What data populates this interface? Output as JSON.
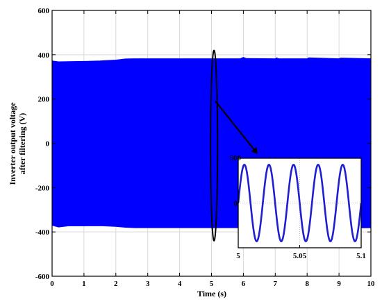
{
  "colors": {
    "signal": "#0000ff",
    "inset_signal": "#1f1fd0",
    "grid": "#d9d9d9",
    "axis": "#000000",
    "background": "#ffffff"
  },
  "chart_data": [
    {
      "type": "area",
      "xlabel": "Time (s)",
      "ylabel_lines": [
        "Inverter output voltage",
        "after filtering (V)"
      ],
      "xlim": [
        0,
        10
      ],
      "ylim": [
        -600,
        600
      ],
      "xticks": [
        0,
        1,
        2,
        3,
        4,
        5,
        6,
        7,
        8,
        9,
        10
      ],
      "yticks": [
        -600,
        -400,
        -200,
        0,
        200,
        400,
        600
      ],
      "grid": true,
      "envelope": {
        "x": [
          0,
          0.2,
          0.5,
          1.0,
          1.5,
          2.0,
          2.3,
          2.6,
          3.0,
          4.0,
          5.0,
          5.9,
          6.0,
          6.1,
          7.0,
          7.05,
          7.1,
          8.0,
          8.05,
          9.0,
          9.05,
          10.0
        ],
        "upper": [
          372,
          368,
          369,
          370,
          372,
          376,
          381,
          382,
          382,
          382,
          382,
          382,
          388,
          383,
          382,
          386,
          382,
          382,
          386,
          382,
          385,
          382
        ],
        "lower": [
          -370,
          -378,
          -373,
          -373,
          -372,
          -375,
          -379,
          -381,
          -381,
          -381,
          -381,
          -381,
          -384,
          -381,
          -381,
          -384,
          -381,
          -381,
          -383,
          -381,
          -383,
          -381
        ]
      },
      "annotation": {
        "type": "ellipse-zoom",
        "center_x": 5.08,
        "y_range": [
          -440,
          420
        ],
        "zoom_target": "inset"
      }
    },
    {
      "type": "line",
      "role": "inset",
      "xlim": [
        5,
        5.1
      ],
      "ylim": [
        -450,
        450
      ],
      "xticks": [
        5,
        5.05,
        5.1
      ],
      "xtick_labels": [
        "5",
        "5.05",
        "5.1"
      ],
      "yticks": [
        -500,
        0,
        500
      ],
      "visible_ytick_labels": [
        "500",
        "0"
      ],
      "grid": true,
      "series": [
        {
          "frequency_hz": 50,
          "amplitude": 385,
          "phase_deg": 0
        }
      ]
    }
  ]
}
